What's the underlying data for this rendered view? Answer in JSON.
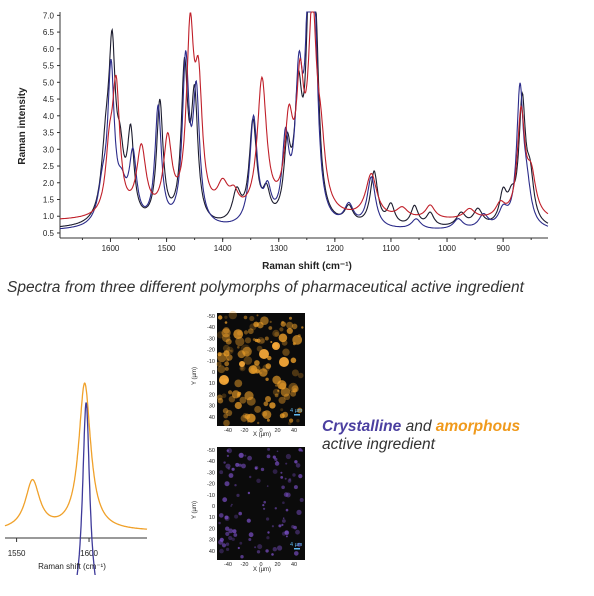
{
  "caption": "Spectra from three different polymorphs of pharmaceutical active ingredient",
  "legend": {
    "crystalline": "Crystalline",
    "and": "and",
    "amorphous": "amorphous",
    "line2": "active ingredient"
  },
  "colors": {
    "black_series": "#1c1c2e",
    "navy_series": "#2c2c8a",
    "red_series": "#c0202a",
    "amorphous": "#f0a12a",
    "crystalline": "#3e3a9a",
    "map_bg": "#0b0b0b"
  },
  "chart_data": [
    {
      "type": "line",
      "xlabel": "Raman shift (cm⁻¹)",
      "ylabel": "Raman intensity",
      "xlim": [
        1690,
        820
      ],
      "ylim": [
        0.35,
        7.1
      ],
      "x_ticks": [
        "1600",
        "1500",
        "1400",
        "1300",
        "1200",
        "1100",
        "1000",
        "900"
      ],
      "y_ticks": [
        "0.5",
        "1.0",
        "1.5",
        "2.0",
        "2.5",
        "3.0",
        "3.5",
        "4.0",
        "4.5",
        "5.0",
        "5.5",
        "6.0",
        "6.5",
        "7.0"
      ],
      "series": [
        {
          "color": "#1c1c2e",
          "baseline": 0.6,
          "peaks": [
            [
              1608,
              2.0,
              10
            ],
            [
              1597,
              4.5,
              7
            ],
            [
              1583,
              1.6,
              8
            ],
            [
              1564,
              2.5,
              7
            ],
            [
              1512,
              3.6,
              7
            ],
            [
              1468,
              4.5,
              7
            ],
            [
              1450,
              3.6,
              7
            ],
            [
              1375,
              0.9,
              9
            ],
            [
              1346,
              3.0,
              8
            ],
            [
              1322,
              0.8,
              8
            ],
            [
              1285,
              2.0,
              7
            ],
            [
              1265,
              3.5,
              8
            ],
            [
              1245,
              6.4,
              7
            ],
            [
              1234,
              4.6,
              7
            ],
            [
              1175,
              0.5,
              9
            ],
            [
              1130,
              1.6,
              8
            ],
            [
              1100,
              0.6,
              8
            ],
            [
              1058,
              0.6,
              8
            ],
            [
              1030,
              0.4,
              8
            ],
            [
              975,
              0.4,
              10
            ],
            [
              945,
              0.5,
              10
            ],
            [
              900,
              0.9,
              8
            ],
            [
              885,
              0.6,
              8
            ],
            [
              866,
              3.6,
              7
            ],
            [
              852,
              1.3,
              8
            ]
          ]
        },
        {
          "color": "#2c2c8a",
          "baseline": 0.55,
          "peaks": [
            [
              1614,
              1.0,
              10
            ],
            [
              1599,
              4.5,
              7
            ],
            [
              1580,
              0.9,
              10
            ],
            [
              1560,
              2.0,
              8
            ],
            [
              1515,
              3.5,
              7
            ],
            [
              1466,
              4.8,
              7
            ],
            [
              1447,
              3.8,
              7
            ],
            [
              1345,
              3.2,
              8
            ],
            [
              1320,
              0.9,
              8
            ],
            [
              1288,
              2.3,
              7
            ],
            [
              1264,
              4.0,
              8
            ],
            [
              1246,
              6.2,
              7
            ],
            [
              1236,
              4.8,
              7
            ],
            [
              1175,
              0.6,
              10
            ],
            [
              1135,
              1.5,
              9
            ],
            [
              1055,
              0.3,
              10
            ],
            [
              980,
              0.3,
              10
            ],
            [
              935,
              0.4,
              10
            ],
            [
              900,
              0.5,
              10
            ],
            [
              870,
              4.0,
              7
            ],
            [
              858,
              1.0,
              9
            ]
          ]
        },
        {
          "color": "#c0202a",
          "baseline": 0.85,
          "peaks": [
            [
              1602,
              1.6,
              8
            ],
            [
              1590,
              3.7,
              8
            ],
            [
              1545,
              2.0,
              10
            ],
            [
              1498,
              2.2,
              9
            ],
            [
              1458,
              5.2,
              8
            ],
            [
              1443,
              3.5,
              8
            ],
            [
              1400,
              0.8,
              12
            ],
            [
              1380,
              0.5,
              10
            ],
            [
              1330,
              4.0,
              10
            ],
            [
              1282,
              2.5,
              9
            ],
            [
              1262,
              3.4,
              8
            ],
            [
              1240,
              5.7,
              9
            ],
            [
              1225,
              1.6,
              9
            ],
            [
              1135,
              1.3,
              12
            ],
            [
              1080,
              0.3,
              12
            ],
            [
              1030,
              0.4,
              10
            ],
            [
              960,
              0.3,
              12
            ],
            [
              905,
              0.4,
              10
            ],
            [
              868,
              3.1,
              8
            ],
            [
              850,
              1.2,
              10
            ]
          ]
        }
      ]
    },
    {
      "type": "line",
      "xlabel": "Raman shift (cm⁻¹)",
      "xlim": [
        1542,
        1640
      ],
      "x_ticks": [
        "1550",
        "1600"
      ],
      "series": [
        {
          "color": "#f0a12a",
          "baseline": 0.2,
          "peaks": [
            [
              1561,
              1.75,
              6
            ],
            [
              1597,
              5.25,
              5
            ]
          ]
        },
        {
          "color": "#3e3a9a",
          "baseline": -2.8,
          "peaks": [
            [
              1565,
              1.05,
              2
            ],
            [
              1598,
              7.6,
              3
            ]
          ]
        }
      ]
    }
  ],
  "maps": [
    {
      "ylabel": "Y (µm)",
      "xlabel": "X (µm)",
      "y_ticks": [
        "-50",
        "-40",
        "-30",
        "-20",
        "-10",
        "0",
        "10",
        "20",
        "30",
        "40"
      ],
      "x_ticks": [
        "-40",
        "-20",
        "0",
        "20",
        "40"
      ],
      "scalebar": "4 µm"
    },
    {
      "ylabel": "Y (µm)",
      "xlabel": "X (µm)",
      "y_ticks": [
        "-50",
        "-40",
        "-30",
        "-20",
        "-10",
        "0",
        "10",
        "20",
        "30",
        "40"
      ],
      "x_ticks": [
        "-40",
        "-20",
        "0",
        "20",
        "40"
      ],
      "scalebar": "4 µm"
    }
  ]
}
